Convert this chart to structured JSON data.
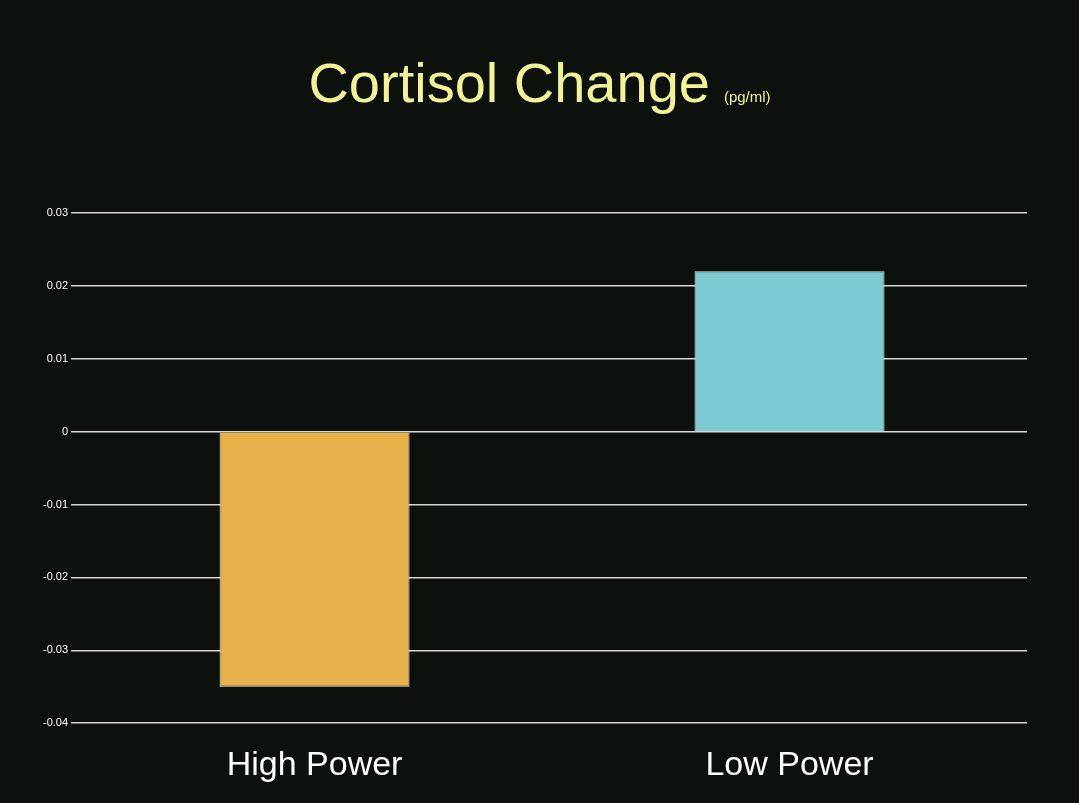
{
  "chart_data": {
    "type": "bar",
    "title": "Cortisol Change",
    "subtitle": "(pg/ml)",
    "categories": [
      "High Power",
      "Low Power"
    ],
    "values": [
      -0.035,
      0.022
    ],
    "colors": [
      "#e8b04a",
      "#7ccbd3"
    ],
    "ylim": [
      -0.04,
      0.03
    ],
    "yticks": [
      -0.04,
      -0.03,
      -0.02,
      -0.01,
      0,
      0.01,
      0.02,
      0.03
    ],
    "grid": "y",
    "legend": false
  }
}
